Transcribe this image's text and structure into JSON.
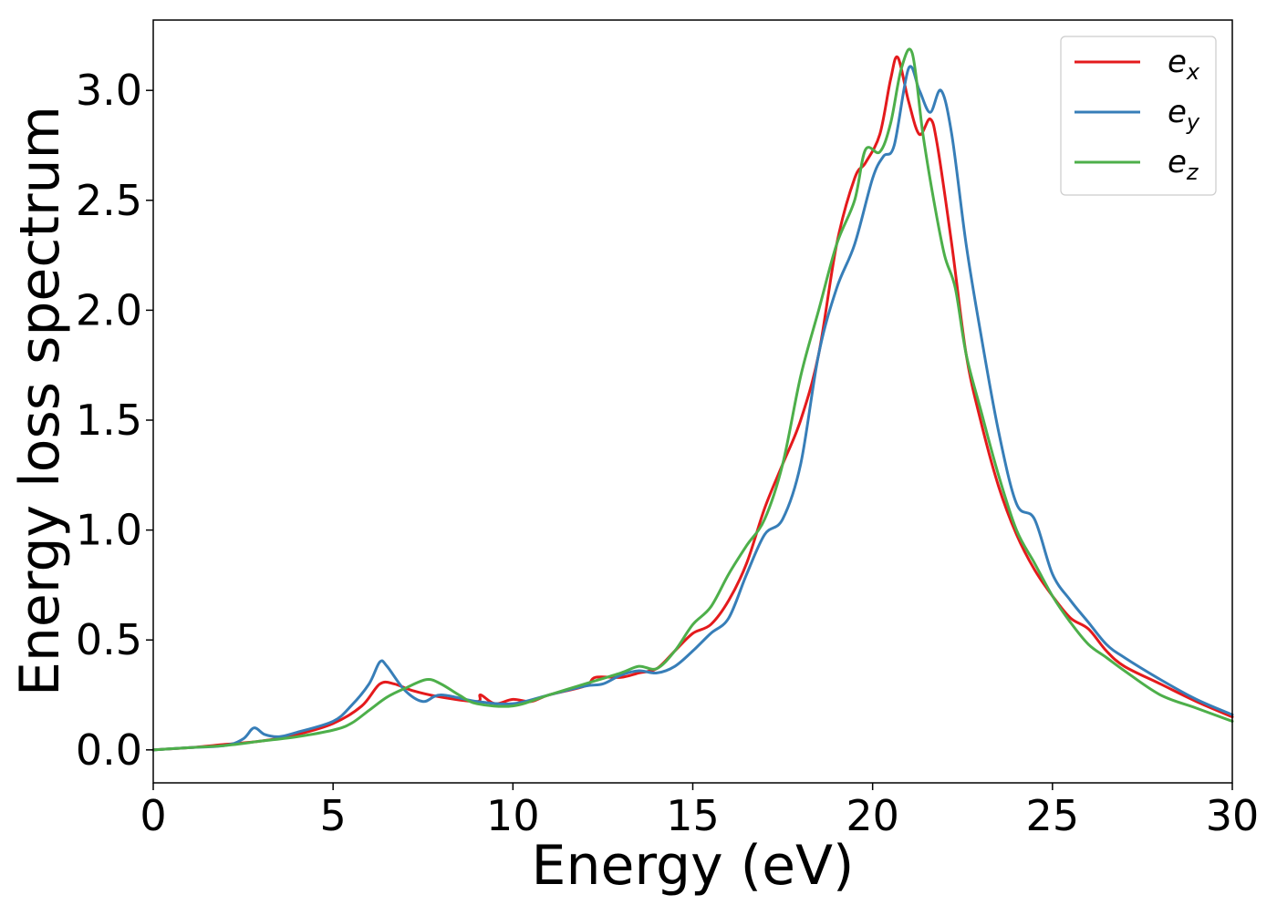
{
  "chart_data": {
    "type": "line",
    "title": "",
    "xlabel": "Energy (eV)",
    "ylabel": "Energy loss spectrum",
    "xlim": [
      0,
      30
    ],
    "ylim": [
      -0.15,
      3.32
    ],
    "xticks": [
      0,
      5,
      10,
      15,
      20,
      25,
      30
    ],
    "yticks": [
      0.0,
      0.5,
      1.0,
      1.5,
      2.0,
      2.5,
      3.0
    ],
    "xtick_labels": [
      "0",
      "5",
      "10",
      "15",
      "20",
      "25",
      "30"
    ],
    "ytick_labels": [
      "0.0",
      "0.5",
      "1.0",
      "1.5",
      "2.0",
      "2.5",
      "3.0"
    ],
    "grid": false,
    "legend_position": "top-right",
    "series": [
      {
        "name": "e",
        "name_sub": "x",
        "color": "#e41a1c",
        "x": [
          0,
          1,
          2,
          3,
          4,
          5,
          5.8,
          6.3,
          6.7,
          7.2,
          8,
          9,
          9.1,
          9.5,
          10,
          10.5,
          11,
          12,
          12.3,
          13,
          13.5,
          14,
          14.5,
          15,
          15.5,
          16,
          16.5,
          17,
          17.5,
          18,
          18.5,
          19,
          19.5,
          19.8,
          20.2,
          20.5,
          20.7,
          21,
          21.3,
          21.6,
          21.8,
          22.2,
          22.6,
          23,
          23.5,
          24,
          24.5,
          25,
          25.5,
          26,
          26.5,
          27,
          28,
          29,
          30
        ],
        "y": [
          0.0,
          0.01,
          0.025,
          0.04,
          0.07,
          0.12,
          0.2,
          0.3,
          0.3,
          0.27,
          0.24,
          0.22,
          0.25,
          0.21,
          0.23,
          0.22,
          0.25,
          0.29,
          0.33,
          0.33,
          0.35,
          0.37,
          0.45,
          0.53,
          0.57,
          0.68,
          0.85,
          1.1,
          1.3,
          1.5,
          1.8,
          2.3,
          2.6,
          2.67,
          2.8,
          3.05,
          3.15,
          2.95,
          2.8,
          2.87,
          2.75,
          2.3,
          1.8,
          1.5,
          1.2,
          0.98,
          0.82,
          0.7,
          0.6,
          0.55,
          0.45,
          0.38,
          0.3,
          0.22,
          0.15
        ]
      },
      {
        "name": "e",
        "name_sub": "y",
        "color": "#377eb8",
        "x": [
          0,
          1,
          2,
          2.5,
          2.8,
          3.1,
          3.5,
          4,
          5,
          5.5,
          6,
          6.3,
          6.5,
          7,
          7.5,
          8,
          9,
          10,
          11,
          12,
          12.5,
          13,
          13.5,
          14,
          14.5,
          15,
          15.5,
          16,
          16.5,
          17,
          17.5,
          18,
          18.5,
          19,
          19.5,
          20,
          20.3,
          20.6,
          21,
          21.3,
          21.6,
          21.9,
          22.2,
          22.6,
          23,
          23.5,
          24,
          24.5,
          25,
          25.5,
          26,
          26.5,
          27,
          28,
          29,
          30
        ],
        "y": [
          0.0,
          0.01,
          0.02,
          0.05,
          0.1,
          0.07,
          0.06,
          0.08,
          0.13,
          0.2,
          0.3,
          0.4,
          0.38,
          0.27,
          0.22,
          0.25,
          0.22,
          0.21,
          0.25,
          0.29,
          0.3,
          0.34,
          0.36,
          0.35,
          0.38,
          0.45,
          0.53,
          0.6,
          0.8,
          0.98,
          1.05,
          1.3,
          1.8,
          2.1,
          2.3,
          2.6,
          2.7,
          2.75,
          3.1,
          3.0,
          2.9,
          3.0,
          2.8,
          2.3,
          1.9,
          1.45,
          1.12,
          1.05,
          0.8,
          0.68,
          0.58,
          0.48,
          0.42,
          0.32,
          0.23,
          0.16
        ]
      },
      {
        "name": "e",
        "name_sub": "z",
        "color": "#4daf4a",
        "x": [
          0,
          1,
          2,
          3,
          4,
          5,
          5.5,
          6,
          6.5,
          7,
          7.6,
          8,
          8.5,
          9,
          10,
          11,
          12,
          13,
          13.5,
          14,
          14.5,
          15,
          15.5,
          16,
          16.5,
          17,
          17.5,
          18,
          18.5,
          19,
          19.5,
          19.8,
          20.2,
          20.5,
          20.8,
          21.1,
          21.4,
          21.7,
          22,
          22.3,
          22.6,
          23,
          23.5,
          24,
          24.5,
          25,
          25.5,
          26,
          26.5,
          27,
          28,
          29,
          30
        ],
        "y": [
          0.0,
          0.01,
          0.02,
          0.04,
          0.06,
          0.09,
          0.12,
          0.18,
          0.24,
          0.28,
          0.32,
          0.3,
          0.25,
          0.21,
          0.2,
          0.25,
          0.3,
          0.35,
          0.38,
          0.37,
          0.45,
          0.57,
          0.65,
          0.8,
          0.93,
          1.05,
          1.3,
          1.7,
          2.0,
          2.3,
          2.5,
          2.73,
          2.72,
          2.85,
          3.1,
          3.17,
          2.8,
          2.5,
          2.25,
          2.1,
          1.8,
          1.55,
          1.25,
          1.0,
          0.85,
          0.7,
          0.58,
          0.48,
          0.42,
          0.36,
          0.25,
          0.19,
          0.13
        ]
      }
    ]
  }
}
